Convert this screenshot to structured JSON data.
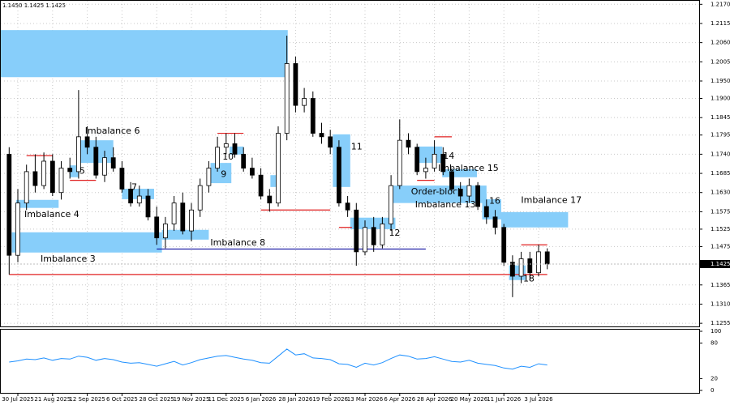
{
  "chart_data": [
    {
      "type": "candlestick",
      "header": "1.1450 1.1425 1.1425",
      "categories": [
        null,
        "30 Jul 2025",
        null,
        null,
        null,
        "21 Aug 2025",
        null,
        null,
        null,
        "12 Sep 2025",
        null,
        null,
        null,
        "6 Oct 2025",
        null,
        null,
        null,
        "28 Oct 2025",
        null,
        null,
        null,
        "19 Nov 2025",
        null,
        null,
        null,
        "11 Dec 2025",
        null,
        null,
        null,
        "6 Jan 2026",
        null,
        null,
        null,
        "28 Jan 2026",
        null,
        null,
        null,
        "19 Feb 2026",
        null,
        null,
        null,
        "13 Mar 2026",
        null,
        null,
        null,
        "6 Apr 2026",
        null,
        null,
        null,
        "28 Apr 2026",
        null,
        null,
        null,
        "20 May 2026",
        null,
        null,
        null,
        "11 Jun 2026",
        null,
        null,
        null,
        "3 Jul 2026",
        null
      ],
      "open": [
        1.174,
        1.145,
        1.16,
        1.169,
        1.165,
        1.172,
        1.163,
        1.17,
        1.169,
        1.179,
        1.176,
        1.168,
        1.173,
        1.17,
        1.164,
        1.16,
        1.162,
        1.156,
        1.15,
        1.154,
        1.16,
        1.152,
        1.158,
        1.165,
        1.17,
        1.176,
        1.177,
        1.174,
        1.17,
        1.168,
        1.162,
        1.16,
        1.18,
        1.2,
        1.188,
        1.19,
        1.18,
        1.179,
        1.176,
        1.16,
        1.158,
        1.146,
        1.153,
        1.148,
        1.154,
        1.165,
        1.178,
        1.176,
        1.169,
        1.17,
        1.174,
        1.169,
        1.164,
        1.162,
        1.165,
        1.159,
        1.156,
        1.153,
        1.143,
        1.139,
        1.144,
        1.14,
        1.146
      ],
      "high": [
        1.176,
        1.164,
        1.171,
        1.174,
        1.1745,
        1.174,
        1.172,
        1.173,
        1.1924,
        1.182,
        1.179,
        1.175,
        1.176,
        1.172,
        1.166,
        1.165,
        1.164,
        1.159,
        1.156,
        1.162,
        1.163,
        1.16,
        1.167,
        1.172,
        1.179,
        1.18,
        1.18,
        1.176,
        1.173,
        1.17,
        1.164,
        1.182,
        1.208,
        1.202,
        1.193,
        1.192,
        1.183,
        1.181,
        1.178,
        1.162,
        1.16,
        1.155,
        1.156,
        1.156,
        1.168,
        1.184,
        1.18,
        1.177,
        1.173,
        1.178,
        1.176,
        1.17,
        1.166,
        1.167,
        1.166,
        1.161,
        1.158,
        1.154,
        1.145,
        1.146,
        1.146,
        1.148,
        1.147
      ],
      "low": [
        1.1395,
        1.143,
        1.158,
        1.163,
        1.164,
        1.162,
        1.161,
        1.167,
        1.167,
        1.174,
        1.167,
        1.166,
        1.169,
        1.163,
        1.159,
        1.159,
        1.155,
        1.148,
        1.147,
        1.152,
        1.151,
        1.149,
        1.156,
        1.163,
        1.169,
        1.174,
        1.173,
        1.169,
        1.167,
        1.161,
        1.1575,
        1.159,
        1.178,
        1.186,
        1.186,
        1.179,
        1.177,
        1.174,
        1.159,
        1.156,
        1.142,
        1.145,
        1.146,
        1.147,
        1.152,
        1.164,
        1.174,
        1.168,
        1.167,
        1.169,
        1.168,
        1.163,
        1.16,
        1.16,
        1.158,
        1.154,
        1.151,
        1.142,
        1.133,
        1.137,
        1.138,
        1.139,
        1.141
      ],
      "close": [
        1.145,
        1.16,
        1.169,
        1.165,
        1.172,
        1.163,
        1.17,
        1.169,
        1.179,
        1.176,
        1.168,
        1.173,
        1.17,
        1.164,
        1.16,
        1.162,
        1.156,
        1.15,
        1.154,
        1.16,
        1.152,
        1.158,
        1.165,
        1.17,
        1.176,
        1.177,
        1.174,
        1.17,
        1.168,
        1.162,
        1.16,
        1.18,
        1.2,
        1.188,
        1.19,
        1.18,
        1.179,
        1.176,
        1.16,
        1.158,
        1.146,
        1.153,
        1.148,
        1.154,
        1.165,
        1.178,
        1.176,
        1.169,
        1.17,
        1.174,
        1.169,
        1.164,
        1.162,
        1.165,
        1.159,
        1.156,
        1.153,
        1.143,
        1.139,
        1.144,
        1.14,
        1.146,
        1.1425
      ],
      "ylim": [
        1.1246,
        1.218
      ],
      "yticks": [
        {
          "value": 1.217,
          "label": "1.2170"
        },
        1.2115,
        {
          "value": 1.206,
          "label": "1.2060"
        },
        1.2005,
        {
          "value": 1.195,
          "label": "1.1950"
        },
        {
          "value": 1.19,
          "label": "1.1900"
        },
        1.1845,
        1.1795,
        {
          "value": 1.174,
          "label": "1.1740"
        },
        1.1685,
        {
          "value": 1.163,
          "label": "1.1630"
        },
        1.1575,
        1.1525,
        1.1475,
        1.1365,
        {
          "value": 1.131,
          "label": "1.1310"
        },
        1.1255
      ],
      "last_price": 1.1425,
      "grid": true,
      "zone_color": "#87cefa",
      "zones": [
        {
          "span": [
            -1.1,
            32.1
          ],
          "range": [
            1.1961,
            1.2096
          ]
        },
        {
          "label": "Imbalance 3",
          "span": [
            0.3,
            17.6
          ],
          "range": [
            1.1458,
            1.1516
          ]
        },
        {
          "label": "Imbalance 4",
          "span": [
            0.8,
            5.7
          ],
          "range": [
            1.1586,
            1.1609
          ]
        },
        {
          "label": "5",
          "span": [
            7.0,
            8.0
          ],
          "range": [
            1.1674,
            1.1708
          ]
        },
        {
          "label": "Imbalance 6",
          "span": [
            8.1,
            12.0
          ],
          "range": [
            1.1715,
            1.178
          ]
        },
        {
          "label": "7",
          "span": [
            13.0,
            16.7
          ],
          "range": [
            1.1611,
            1.1641
          ]
        },
        {
          "label": "Imbalance 8",
          "span": [
            17.6,
            23.0
          ],
          "range": [
            1.1495,
            1.1523
          ]
        },
        {
          "label": "9",
          "span": [
            23.2,
            25.6
          ],
          "range": [
            1.1657,
            1.1715
          ]
        },
        {
          "label": "10",
          "span": [
            25.4,
            27.0
          ],
          "range": [
            1.1739,
            1.1762
          ]
        },
        {
          "span": [
            30.1,
            31.2
          ],
          "range": [
            1.1646,
            1.168
          ]
        },
        {
          "label": "11",
          "span": [
            37.3,
            39.3
          ],
          "range": [
            1.1646,
            1.1797
          ]
        },
        {
          "label": "12",
          "span": [
            39.3,
            44.5
          ],
          "range": [
            1.1525,
            1.1558
          ]
        },
        {
          "label": "Order-block",
          "span": [
            44.1,
            55.0
          ],
          "range": [
            1.16,
            1.165
          ]
        },
        {
          "label": "Imbalance 13",
          "span": [
            51.3,
            55.0
          ],
          "range": [
            1.1604,
            1.1627
          ]
        },
        {
          "label": "14",
          "span": [
            47.1,
            49.9
          ],
          "range": [
            1.1715,
            1.1762
          ]
        },
        {
          "label": "Imbalance 15",
          "span": [
            49.9,
            53.9
          ],
          "range": [
            1.1674,
            1.1697
          ]
        },
        {
          "label": "16",
          "span": [
            54.5,
            56.7
          ],
          "range": [
            1.1553,
            1.1611
          ]
        },
        {
          "label": "Imbalance 17",
          "span": [
            56.7,
            64.4
          ],
          "range": [
            1.153,
            1.1574
          ]
        },
        {
          "label": "18",
          "span": [
            57.6,
            59.5
          ],
          "range": [
            1.1379,
            1.1421
          ]
        }
      ],
      "levels": [
        {
          "price": 1.1395,
          "span": [
            0,
            62
          ],
          "color": "#e02020"
        },
        {
          "price": 1.1468,
          "span": [
            17,
            48
          ],
          "color": "#1010a0"
        },
        {
          "price": 1.158,
          "span": [
            29,
            37
          ],
          "color": "#e02020"
        },
        {
          "price": 1.1736,
          "span": [
            2,
            5
          ],
          "color": "#e02020"
        },
        {
          "price": 1.1665,
          "span": [
            7,
            10
          ],
          "color": "#e02020"
        },
        {
          "price": 1.18,
          "span": [
            24,
            27
          ],
          "color": "#e02020"
        },
        {
          "price": 1.153,
          "span": [
            38,
            39.5
          ],
          "color": "#e02020"
        },
        {
          "price": 1.1665,
          "span": [
            47,
            49
          ],
          "color": "#e02020"
        },
        {
          "price": 1.179,
          "span": [
            49,
            51
          ],
          "color": "#e02020"
        },
        {
          "price": 1.148,
          "span": [
            59,
            62
          ],
          "color": "#e02020"
        }
      ]
    },
    {
      "type": "line",
      "color": "#1e90ff",
      "values": [
        48,
        50,
        53,
        52,
        55,
        51,
        54,
        53,
        58,
        56,
        51,
        54,
        52,
        48,
        46,
        47,
        44,
        41,
        45,
        49,
        43,
        47,
        52,
        55,
        58,
        59,
        56,
        53,
        51,
        47,
        46,
        58,
        70,
        60,
        62,
        55,
        54,
        52,
        45,
        44,
        39,
        46,
        43,
        47,
        54,
        60,
        58,
        53,
        54,
        57,
        53,
        49,
        48,
        51,
        46,
        44,
        42,
        38,
        36,
        41,
        39,
        45,
        43
      ],
      "ylim": [
        0,
        100
      ],
      "yticks": [
        100,
        80,
        20,
        0
      ]
    }
  ]
}
